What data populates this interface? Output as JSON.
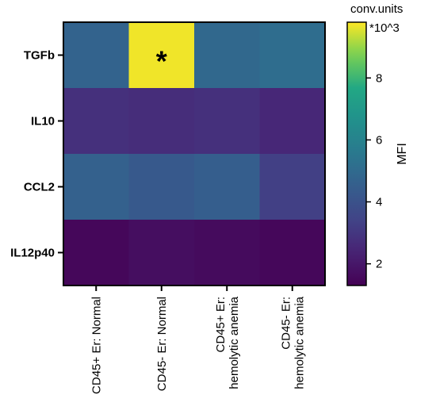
{
  "chart_data": {
    "type": "heatmap",
    "rows": [
      "TGFb",
      "IL10",
      "CCL2",
      "IL12p40"
    ],
    "columns": [
      [
        "CD45+ Er: Normal"
      ],
      [
        "CD45- Er: Normal"
      ],
      [
        "CD45+ Er:",
        "hemolytic anemia"
      ],
      [
        "CD45- Er:",
        "hemolytic anemia"
      ]
    ],
    "values": [
      [
        4.7,
        9.7,
        4.9,
        5.1
      ],
      [
        2.8,
        2.7,
        2.8,
        2.5
      ],
      [
        4.6,
        4.3,
        4.5,
        3.3
      ],
      [
        1.5,
        1.7,
        1.6,
        1.5
      ]
    ],
    "annotations": [
      {
        "row": 0,
        "column": 1,
        "text": "*"
      }
    ],
    "colorbar": {
      "label": "MFI",
      "unit_line1": "conv.units",
      "unit_line2": "*10^3",
      "min": 1.3,
      "max": 9.8,
      "ticks": [
        2,
        4,
        6,
        8
      ],
      "colormap": "viridis"
    }
  }
}
